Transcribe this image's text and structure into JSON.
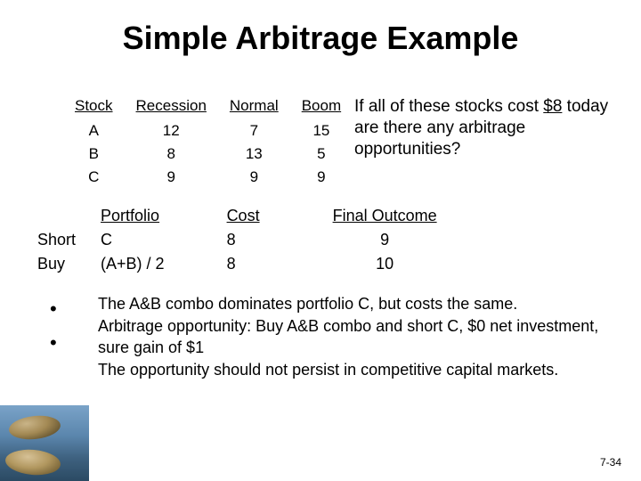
{
  "title": "Simple Arbitrage Example",
  "question": {
    "line1": "If all of these stocks cost",
    "price": "$8",
    "line2_rest": " today are there any",
    "line3": "arbitrage opportunities?"
  },
  "stocks": {
    "headers": {
      "stock": "Stock",
      "recession": "Recession",
      "normal": "Normal",
      "boom": "Boom"
    },
    "rows": [
      {
        "stock": "A",
        "recession": "12",
        "normal": "7",
        "boom": "15"
      },
      {
        "stock": "B",
        "recession": "8",
        "normal": "13",
        "boom": "5"
      },
      {
        "stock": "C",
        "recession": "9",
        "normal": "9",
        "boom": "9"
      }
    ]
  },
  "portfolio": {
    "headers": {
      "portfolio": "Portfolio",
      "cost": "Cost",
      "outcome": "Final Outcome"
    },
    "rows": [
      {
        "action": "Short",
        "name": "C",
        "cost": "8",
        "outcome": "9"
      },
      {
        "action": "Buy",
        "name": "(A+B) / 2",
        "cost": "8",
        "outcome": "10"
      }
    ]
  },
  "bullets": {
    "b1": "The A&B combo dominates portfolio C, but costs the same.",
    "b2": "Arbitrage opportunity:  Buy A&B combo and short C, $0 net investment, sure gain of $1",
    "b3": "The opportunity should not persist in competitive capital markets."
  },
  "pagenum": "7-34"
}
